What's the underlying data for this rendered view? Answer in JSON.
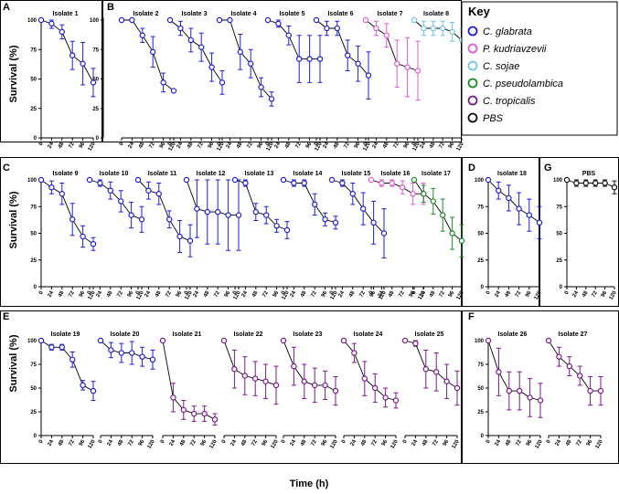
{
  "colors": {
    "C. glabrata": "#1f1fd6",
    "P. kudriavzevii": "#e05ad0",
    "C. sojae": "#6cc6e6",
    "C. pseudolambica": "#1e8a2a",
    "C. tropicalis": "#7a1a8a",
    "PBS": "#111111"
  },
  "key": {
    "title": "Key",
    "entries": [
      {
        "label": "C. glabrata",
        "species": "C. glabrata",
        "italic": true
      },
      {
        "label": "P. kudriavzevii",
        "species": "P. kudriavzevii",
        "italic": true
      },
      {
        "label": "C. sojae",
        "species": "C. sojae",
        "italic": true
      },
      {
        "label": "C. pseudolambica",
        "species": "C. pseudolambica",
        "italic": true
      },
      {
        "label": "C. tropicalis",
        "species": "C. tropicalis",
        "italic": true
      },
      {
        "label": "PBS",
        "species": "PBS",
        "italic": false
      }
    ]
  },
  "axis": {
    "ylabel": "Survival (%)",
    "xlabel": "Time (h)",
    "yticks": [
      0,
      25,
      50,
      75,
      100
    ],
    "xticks": [
      "0",
      "24",
      "48",
      "72",
      "96",
      "120"
    ]
  },
  "panel_letters": [
    "A",
    "B",
    "C",
    "D",
    "E",
    "F",
    "G"
  ],
  "chart_data": {
    "type": "line",
    "ylim": [
      0,
      100
    ],
    "x": [
      0,
      24,
      48,
      72,
      96,
      120
    ],
    "panels": [
      {
        "id": "A",
        "series": [
          {
            "name": "Isolate 1",
            "species": "C. glabrata",
            "y": [
              100,
              97,
              90,
              70,
              63,
              47
            ],
            "err": [
              0,
              4,
              6,
              12,
              18,
              12
            ]
          }
        ]
      },
      {
        "id": "B",
        "series": [
          {
            "name": "Isolate 2",
            "species": "C. glabrata",
            "y": [
              100,
              100,
              87,
              73,
              47,
              40
            ],
            "err": [
              0,
              0,
              6,
              13,
              8,
              0
            ]
          },
          {
            "name": "Isolate 3",
            "species": "C. glabrata",
            "y": [
              100,
              93,
              83,
              77,
              60,
              47
            ],
            "err": [
              0,
              6,
              10,
              12,
              12,
              10
            ]
          },
          {
            "name": "Isolate 4",
            "species": "C. glabrata",
            "y": [
              100,
              100,
              73,
              63,
              43,
              33
            ],
            "err": [
              0,
              0,
              15,
              12,
              8,
              6
            ]
          },
          {
            "name": "Isolate 5",
            "species": "C. glabrata",
            "y": [
              100,
              97,
              87,
              67,
              67,
              67
            ],
            "err": [
              0,
              3,
              8,
              20,
              20,
              20
            ]
          },
          {
            "name": "Isolate 6",
            "species": "C. glabrata",
            "y": [
              100,
              93,
              93,
              70,
              63,
              53
            ],
            "err": [
              0,
              6,
              6,
              13,
              15,
              20
            ]
          },
          {
            "name": "Isolate 7",
            "species": "P. kudriavzevii",
            "y": [
              100,
              93,
              87,
              63,
              60,
              57
            ],
            "err": [
              0,
              6,
              10,
              20,
              25,
              25
            ]
          },
          {
            "name": "Isolate 8",
            "species": "C. sojae",
            "y": [
              100,
              93,
              93,
              93,
              90,
              83
            ],
            "err": [
              0,
              6,
              6,
              6,
              8,
              10
            ]
          }
        ]
      },
      {
        "id": "C",
        "series": [
          {
            "name": "Isolate 9",
            "species": "C. glabrata",
            "y": [
              100,
              93,
              87,
              63,
              47,
              40
            ],
            "err": [
              0,
              6,
              10,
              15,
              10,
              6
            ]
          },
          {
            "name": "Isolate 10",
            "species": "C. glabrata",
            "y": [
              100,
              97,
              90,
              80,
              67,
              63
            ],
            "err": [
              0,
              3,
              8,
              10,
              12,
              12
            ]
          },
          {
            "name": "Isolate 11",
            "species": "C. glabrata",
            "y": [
              100,
              90,
              87,
              63,
              47,
              43
            ],
            "err": [
              0,
              8,
              10,
              8,
              15,
              15
            ]
          },
          {
            "name": "Isolate 12",
            "species": "C. glabrata",
            "y": [
              100,
              73,
              70,
              70,
              67,
              67
            ],
            "err": [
              0,
              27,
              30,
              30,
              33,
              33
            ]
          },
          {
            "name": "Isolate 13",
            "species": "C. glabrata",
            "y": [
              100,
              97,
              70,
              67,
              57,
              53
            ],
            "err": [
              0,
              3,
              8,
              8,
              6,
              8
            ]
          },
          {
            "name": "Isolate 14",
            "species": "C. glabrata",
            "y": [
              100,
              97,
              97,
              77,
              63,
              60
            ],
            "err": [
              0,
              3,
              3,
              10,
              6,
              6
            ]
          },
          {
            "name": "Isolate 15",
            "species": "C. glabrata",
            "y": [
              100,
              97,
              87,
              73,
              60,
              50
            ],
            "err": [
              0,
              3,
              10,
              15,
              20,
              23
            ]
          },
          {
            "name": "Isolate 16",
            "species": "P. kudriavzevii",
            "y": [
              100,
              97,
              97,
              93,
              87,
              87
            ],
            "err": [
              0,
              3,
              3,
              6,
              10,
              10
            ]
          },
          {
            "name": "Isolate 17",
            "species": "C. pseudolambica",
            "y": [
              100,
              87,
              80,
              67,
              50,
              43
            ],
            "err": [
              0,
              8,
              12,
              15,
              15,
              15
            ]
          }
        ]
      },
      {
        "id": "D",
        "series": [
          {
            "name": "Isolate 18",
            "species": "C. glabrata",
            "y": [
              100,
              90,
              83,
              73,
              67,
              60
            ],
            "err": [
              0,
              8,
              12,
              15,
              15,
              15
            ]
          }
        ]
      },
      {
        "id": "G",
        "series": [
          {
            "name": "PBS",
            "species": "PBS",
            "y": [
              100,
              97,
              97,
              97,
              97,
              93
            ],
            "err": [
              0,
              3,
              3,
              3,
              3,
              6
            ]
          }
        ]
      },
      {
        "id": "E",
        "series": [
          {
            "name": "Isolate 19",
            "species": "C. glabrata",
            "y": [
              100,
              93,
              93,
              80,
              53,
              47
            ],
            "err": [
              0,
              3,
              3,
              8,
              5,
              10
            ]
          },
          {
            "name": "Isolate 20",
            "species": "C. glabrata",
            "y": [
              100,
              90,
              87,
              87,
              83,
              80
            ],
            "err": [
              0,
              8,
              10,
              12,
              10,
              10
            ]
          },
          {
            "name": "Isolate 21",
            "species": "C. tropicalis",
            "y": [
              100,
              40,
              27,
              23,
              23,
              17
            ],
            "err": [
              0,
              15,
              10,
              8,
              8,
              6
            ]
          },
          {
            "name": "Isolate 22",
            "species": "C. tropicalis",
            "y": [
              100,
              70,
              63,
              60,
              57,
              53
            ],
            "err": [
              0,
              20,
              20,
              18,
              18,
              20
            ]
          },
          {
            "name": "Isolate 23",
            "species": "C. tropicalis",
            "y": [
              100,
              73,
              57,
              53,
              53,
              47
            ],
            "err": [
              0,
              20,
              18,
              18,
              15,
              15
            ]
          },
          {
            "name": "Isolate 24",
            "species": "C. tropicalis",
            "y": [
              100,
              87,
              60,
              50,
              40,
              37
            ],
            "err": [
              0,
              10,
              18,
              15,
              10,
              8
            ]
          },
          {
            "name": "Isolate 25",
            "species": "C. tropicalis",
            "y": [
              100,
              97,
              70,
              67,
              57,
              50
            ],
            "err": [
              0,
              3,
              20,
              20,
              18,
              18
            ]
          }
        ]
      },
      {
        "id": "F",
        "series": [
          {
            "name": "Isolate 26",
            "species": "C. tropicalis",
            "y": [
              100,
              67,
              47,
              47,
              40,
              37
            ],
            "err": [
              0,
              25,
              20,
              20,
              20,
              18
            ]
          },
          {
            "name": "Isolate 27",
            "species": "C. tropicalis",
            "y": [
              100,
              83,
              73,
              63,
              47,
              47
            ],
            "err": [
              0,
              10,
              10,
              10,
              15,
              15
            ]
          }
        ]
      }
    ]
  }
}
